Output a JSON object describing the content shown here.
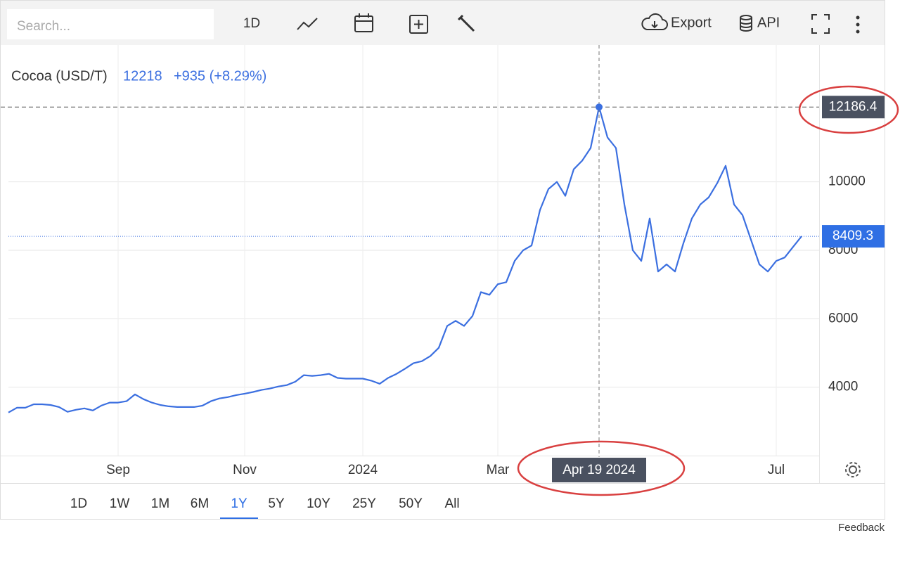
{
  "toolbar": {
    "search_placeholder": "Search...",
    "interval": "1D",
    "export": "Export",
    "api": "API"
  },
  "chart_data": {
    "type": "line",
    "title": "Cocoa (USD/T)",
    "price": 12218,
    "change": "+935 (+8.29%)",
    "categories": [
      null,
      null,
      null,
      null,
      null,
      null,
      null,
      null,
      null,
      null,
      null,
      null,
      null,
      "Sep",
      null,
      null,
      null,
      null,
      null,
      null,
      null,
      null,
      null,
      null,
      null,
      null,
      null,
      null,
      "Nov",
      null,
      null,
      null,
      null,
      null,
      null,
      null,
      null,
      null,
      null,
      null,
      null,
      null,
      "2024",
      null,
      null,
      null,
      null,
      null,
      null,
      null,
      null,
      null,
      null,
      null,
      null,
      null,
      null,
      null,
      "Mar",
      null,
      null,
      null,
      null,
      null,
      null,
      null,
      null,
      null,
      null,
      null,
      "Apr 19 2024",
      null,
      null,
      null,
      null,
      null,
      null,
      null,
      null,
      null,
      null,
      null,
      null,
      null,
      null,
      null,
      null,
      null,
      null,
      null,
      null,
      "Jul",
      null,
      null,
      null
    ],
    "series": [
      {
        "name": "Cocoa",
        "color": "#3b6fe0",
        "values": [
          3260,
          3400,
          3400,
          3500,
          3500,
          3480,
          3420,
          3280,
          3340,
          3380,
          3320,
          3460,
          3550,
          3550,
          3590,
          3790,
          3650,
          3550,
          3480,
          3440,
          3420,
          3420,
          3420,
          3460,
          3590,
          3670,
          3710,
          3770,
          3810,
          3860,
          3920,
          3960,
          4020,
          4060,
          4160,
          4350,
          4330,
          4350,
          4390,
          4270,
          4250,
          4250,
          4250,
          4190,
          4100,
          4270,
          4390,
          4540,
          4700,
          4760,
          4910,
          5150,
          5790,
          5940,
          5790,
          6080,
          6780,
          6700,
          7010,
          7070,
          7690,
          8000,
          8140,
          9180,
          9790,
          10000,
          9590,
          10370,
          10620,
          10990,
          12186.4,
          11300,
          10990,
          9340,
          8000,
          7690,
          8930,
          7380,
          7590,
          7380,
          8210,
          8930,
          9340,
          9550,
          9960,
          10470,
          9340,
          9030,
          8310,
          7590,
          7380,
          7690,
          7790,
          8100,
          8409.3
        ]
      }
    ],
    "ylim": [
      2000,
      14000
    ],
    "yticks": [
      4000,
      6000,
      8000,
      10000
    ],
    "grid": true,
    "crosshair": true
  },
  "ranges": [
    "1D",
    "1W",
    "1M",
    "6M",
    "1Y",
    "5Y",
    "10Y",
    "25Y",
    "50Y",
    "All"
  ],
  "selected_range": 4,
  "feedback": "Feedback"
}
